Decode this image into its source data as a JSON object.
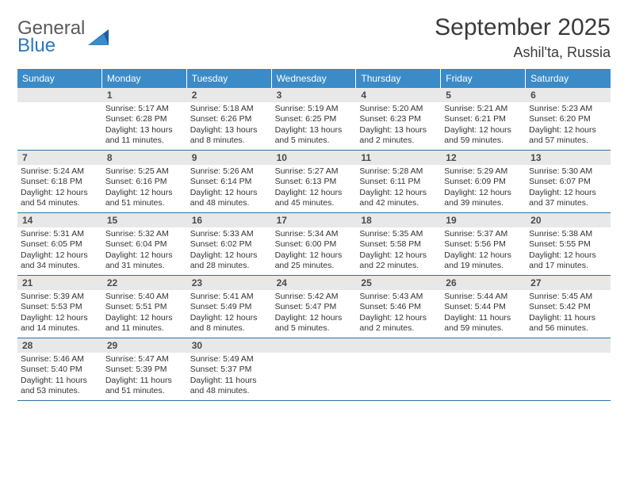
{
  "brand": {
    "word1": "General",
    "word2": "Blue"
  },
  "colors": {
    "header_bg": "#3b8bc9",
    "header_text": "#ffffff",
    "daybar_bg": "#e8e8e8",
    "week_divider": "#2f6fa3",
    "body_text": "#333333",
    "title_text": "#3a3a3a",
    "logo_gray": "#5a5a5a",
    "logo_blue": "#2a78bd"
  },
  "title": "September 2025",
  "location": "Ashil'ta, Russia",
  "dow": [
    "Sunday",
    "Monday",
    "Tuesday",
    "Wednesday",
    "Thursday",
    "Friday",
    "Saturday"
  ],
  "labels": {
    "sunrise": "Sunrise:",
    "sunset": "Sunset:",
    "daylight": "Daylight:"
  },
  "leading_blanks": 1,
  "days": [
    {
      "n": 1,
      "sr": "5:17 AM",
      "ss": "6:28 PM",
      "dl": "13 hours and 11 minutes."
    },
    {
      "n": 2,
      "sr": "5:18 AM",
      "ss": "6:26 PM",
      "dl": "13 hours and 8 minutes."
    },
    {
      "n": 3,
      "sr": "5:19 AM",
      "ss": "6:25 PM",
      "dl": "13 hours and 5 minutes."
    },
    {
      "n": 4,
      "sr": "5:20 AM",
      "ss": "6:23 PM",
      "dl": "13 hours and 2 minutes."
    },
    {
      "n": 5,
      "sr": "5:21 AM",
      "ss": "6:21 PM",
      "dl": "12 hours and 59 minutes."
    },
    {
      "n": 6,
      "sr": "5:23 AM",
      "ss": "6:20 PM",
      "dl": "12 hours and 57 minutes."
    },
    {
      "n": 7,
      "sr": "5:24 AM",
      "ss": "6:18 PM",
      "dl": "12 hours and 54 minutes."
    },
    {
      "n": 8,
      "sr": "5:25 AM",
      "ss": "6:16 PM",
      "dl": "12 hours and 51 minutes."
    },
    {
      "n": 9,
      "sr": "5:26 AM",
      "ss": "6:14 PM",
      "dl": "12 hours and 48 minutes."
    },
    {
      "n": 10,
      "sr": "5:27 AM",
      "ss": "6:13 PM",
      "dl": "12 hours and 45 minutes."
    },
    {
      "n": 11,
      "sr": "5:28 AM",
      "ss": "6:11 PM",
      "dl": "12 hours and 42 minutes."
    },
    {
      "n": 12,
      "sr": "5:29 AM",
      "ss": "6:09 PM",
      "dl": "12 hours and 39 minutes."
    },
    {
      "n": 13,
      "sr": "5:30 AM",
      "ss": "6:07 PM",
      "dl": "12 hours and 37 minutes."
    },
    {
      "n": 14,
      "sr": "5:31 AM",
      "ss": "6:05 PM",
      "dl": "12 hours and 34 minutes."
    },
    {
      "n": 15,
      "sr": "5:32 AM",
      "ss": "6:04 PM",
      "dl": "12 hours and 31 minutes."
    },
    {
      "n": 16,
      "sr": "5:33 AM",
      "ss": "6:02 PM",
      "dl": "12 hours and 28 minutes."
    },
    {
      "n": 17,
      "sr": "5:34 AM",
      "ss": "6:00 PM",
      "dl": "12 hours and 25 minutes."
    },
    {
      "n": 18,
      "sr": "5:35 AM",
      "ss": "5:58 PM",
      "dl": "12 hours and 22 minutes."
    },
    {
      "n": 19,
      "sr": "5:37 AM",
      "ss": "5:56 PM",
      "dl": "12 hours and 19 minutes."
    },
    {
      "n": 20,
      "sr": "5:38 AM",
      "ss": "5:55 PM",
      "dl": "12 hours and 17 minutes."
    },
    {
      "n": 21,
      "sr": "5:39 AM",
      "ss": "5:53 PM",
      "dl": "12 hours and 14 minutes."
    },
    {
      "n": 22,
      "sr": "5:40 AM",
      "ss": "5:51 PM",
      "dl": "12 hours and 11 minutes."
    },
    {
      "n": 23,
      "sr": "5:41 AM",
      "ss": "5:49 PM",
      "dl": "12 hours and 8 minutes."
    },
    {
      "n": 24,
      "sr": "5:42 AM",
      "ss": "5:47 PM",
      "dl": "12 hours and 5 minutes."
    },
    {
      "n": 25,
      "sr": "5:43 AM",
      "ss": "5:46 PM",
      "dl": "12 hours and 2 minutes."
    },
    {
      "n": 26,
      "sr": "5:44 AM",
      "ss": "5:44 PM",
      "dl": "11 hours and 59 minutes."
    },
    {
      "n": 27,
      "sr": "5:45 AM",
      "ss": "5:42 PM",
      "dl": "11 hours and 56 minutes."
    },
    {
      "n": 28,
      "sr": "5:46 AM",
      "ss": "5:40 PM",
      "dl": "11 hours and 53 minutes."
    },
    {
      "n": 29,
      "sr": "5:47 AM",
      "ss": "5:39 PM",
      "dl": "11 hours and 51 minutes."
    },
    {
      "n": 30,
      "sr": "5:49 AM",
      "ss": "5:37 PM",
      "dl": "11 hours and 48 minutes."
    }
  ]
}
